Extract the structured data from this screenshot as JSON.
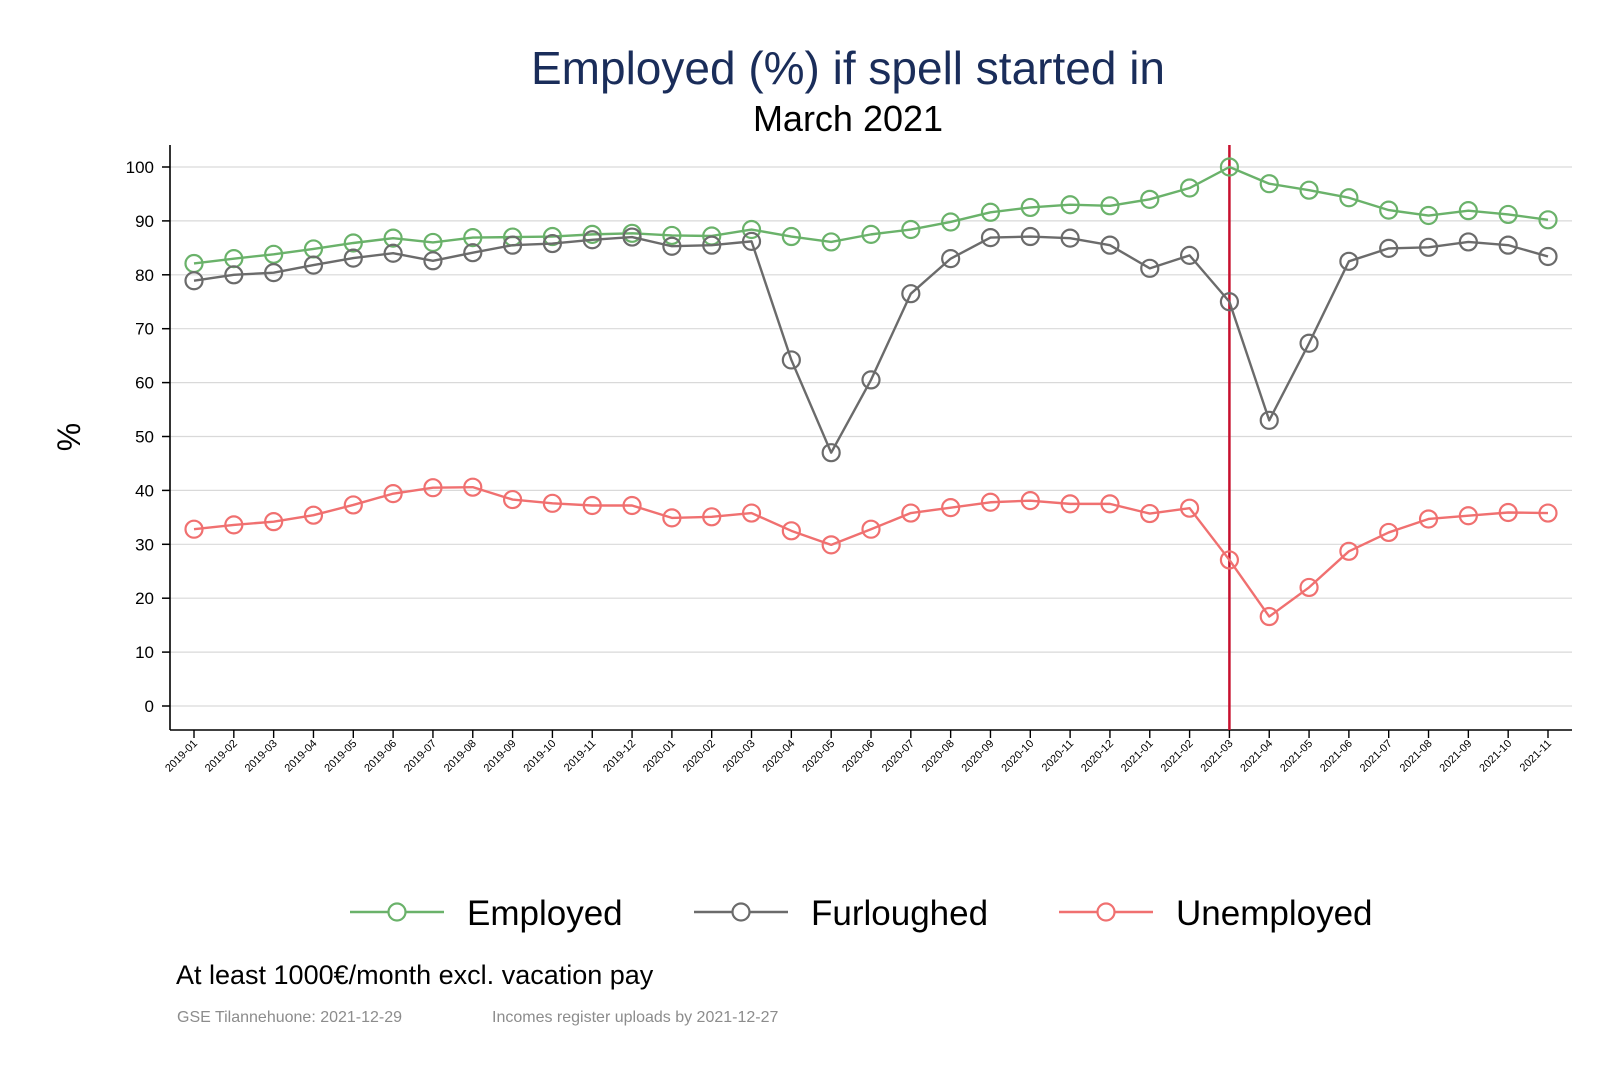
{
  "chart_data": {
    "type": "line",
    "title": "Employed (%) if spell started in",
    "subtitle": "March 2021",
    "ylabel": "%",
    "xlabel": "",
    "ylim": [
      0,
      100
    ],
    "yticks": [
      0,
      10,
      20,
      30,
      40,
      50,
      60,
      70,
      80,
      90,
      100
    ],
    "grid": true,
    "legend_position": "bottom",
    "reference_line": {
      "x": "2021-03",
      "color": "#c8102e"
    },
    "categories": [
      "2019-01",
      "2019-02",
      "2019-03",
      "2019-04",
      "2019-05",
      "2019-06",
      "2019-07",
      "2019-08",
      "2019-09",
      "2019-10",
      "2019-11",
      "2019-12",
      "2020-01",
      "2020-02",
      "2020-03",
      "2020-04",
      "2020-05",
      "2020-06",
      "2020-07",
      "2020-08",
      "2020-09",
      "2020-10",
      "2020-11",
      "2020-12",
      "2021-01",
      "2021-02",
      "2021-03",
      "2021-04",
      "2021-05",
      "2021-06",
      "2021-07",
      "2021-08",
      "2021-09",
      "2021-10",
      "2021-11"
    ],
    "series": [
      {
        "name": "Employed",
        "color": "#6ab26a",
        "values": [
          82.1,
          83.0,
          83.8,
          84.8,
          85.9,
          86.8,
          86.0,
          86.9,
          87.0,
          87.1,
          87.5,
          87.7,
          87.3,
          87.2,
          88.4,
          87.1,
          86.1,
          87.5,
          88.4,
          89.8,
          91.6,
          92.5,
          93.0,
          92.8,
          94.0,
          96.1,
          100.0,
          96.9,
          95.7,
          94.3,
          92.0,
          91.0,
          91.9,
          91.2,
          90.2
        ]
      },
      {
        "name": "Furloughed",
        "color": "#6b6b6b",
        "values": [
          78.9,
          80.0,
          80.4,
          81.8,
          83.1,
          84.0,
          82.6,
          84.1,
          85.5,
          85.8,
          86.5,
          87.0,
          85.3,
          85.5,
          86.2,
          64.2,
          47.0,
          60.5,
          76.5,
          83.0,
          86.9,
          87.1,
          86.8,
          85.5,
          81.2,
          83.6,
          75.0,
          53.0,
          67.3,
          82.5,
          84.9,
          85.1,
          86.1,
          85.5,
          83.4
        ]
      },
      {
        "name": "Unemployed",
        "color": "#f07070",
        "values": [
          32.8,
          33.6,
          34.2,
          35.4,
          37.3,
          39.4,
          40.5,
          40.6,
          38.3,
          37.6,
          37.2,
          37.2,
          34.9,
          35.1,
          35.8,
          32.5,
          29.9,
          32.8,
          35.8,
          36.8,
          37.8,
          38.1,
          37.5,
          37.5,
          35.7,
          36.7,
          27.1,
          16.6,
          22.0,
          28.7,
          32.2,
          34.7,
          35.3,
          35.9,
          35.8
        ]
      }
    ]
  },
  "note": "At least 1000€/month excl. vacation pay",
  "source_left": "GSE Tilannehuone: 2021-12-29",
  "source_right": "Incomes register uploads by 2021-12-27"
}
